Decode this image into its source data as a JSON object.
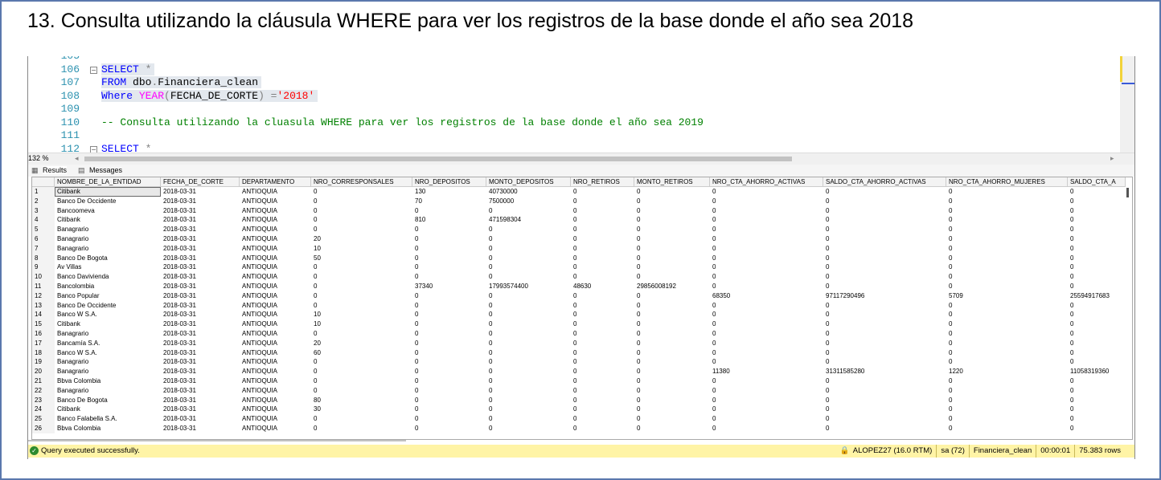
{
  "header": {
    "title": "13. Consulta utilizando la cláusula WHERE para ver los registros de la base donde el año sea 2018"
  },
  "editor": {
    "lines": [
      {
        "number": "105"
      },
      {
        "number": "106",
        "fold": true,
        "selected": true,
        "tokens": [
          {
            "text": "SELECT",
            "kind": "kw"
          },
          {
            "text": " *",
            "kind": "op"
          }
        ]
      },
      {
        "number": "107",
        "selected": true,
        "tokens": [
          {
            "text": "FROM",
            "kind": "kw"
          },
          {
            "text": " dbo",
            "kind": "id"
          },
          {
            "text": ".",
            "kind": "op"
          },
          {
            "text": "Financiera_clean",
            "kind": "id"
          }
        ]
      },
      {
        "number": "108",
        "selected": true,
        "tokens": [
          {
            "text": "Where",
            "kind": "kw"
          },
          {
            "text": " YEAR",
            "kind": "fn"
          },
          {
            "text": "(",
            "kind": "op"
          },
          {
            "text": "FECHA_DE_CORTE",
            "kind": "id"
          },
          {
            "text": ") =",
            "kind": "op"
          },
          {
            "text": "'2018'",
            "kind": "st"
          }
        ]
      },
      {
        "number": "109"
      },
      {
        "number": "110",
        "tokens": [
          {
            "text": "-- Consulta utilizando la cluasula WHERE para ver los registros de la base donde el año sea 2019",
            "kind": "cm"
          }
        ]
      },
      {
        "number": "111"
      },
      {
        "number": "112",
        "fold": true,
        "tokens": [
          {
            "text": "SELECT",
            "kind": "kw"
          },
          {
            "text": " *",
            "kind": "op"
          }
        ]
      }
    ]
  },
  "zoom": "132 %",
  "tabs": [
    "Results",
    "Messages"
  ],
  "table": {
    "columns": [
      "NOMBRE_DE_LA_ENTIDAD",
      "FECHA_DE_CORTE",
      "DEPARTAMENTO",
      "NRO_CORRESPONSALES",
      "NRO_DEPOSITOS",
      "MONTO_DEPOSITOS",
      "NRO_RETIROS",
      "MONTO_RETIROS",
      "NRO_CTA_AHORRO_ACTIVAS",
      "SALDO_CTA_AHORRO_ACTIVAS",
      "NRO_CTA_AHORRO_MUJERES",
      "SALDO_CTA_A"
    ],
    "rows": [
      [
        "1",
        "Citibank",
        "2018-03-31",
        "ANTIOQUIA",
        "0",
        "130",
        "40730000",
        "0",
        "0",
        "0",
        "0",
        "0",
        "0"
      ],
      [
        "2",
        "Banco De Occidente",
        "2018-03-31",
        "ANTIOQUIA",
        "0",
        "70",
        "7500000",
        "0",
        "0",
        "0",
        "0",
        "0",
        "0"
      ],
      [
        "3",
        "Bancoomeva",
        "2018-03-31",
        "ANTIOQUIA",
        "0",
        "0",
        "0",
        "0",
        "0",
        "0",
        "0",
        "0",
        "0"
      ],
      [
        "4",
        "Citibank",
        "2018-03-31",
        "ANTIOQUIA",
        "0",
        "810",
        "471598304",
        "0",
        "0",
        "0",
        "0",
        "0",
        "0"
      ],
      [
        "5",
        "Banagrario",
        "2018-03-31",
        "ANTIOQUIA",
        "0",
        "0",
        "0",
        "0",
        "0",
        "0",
        "0",
        "0",
        "0"
      ],
      [
        "6",
        "Banagrario",
        "2018-03-31",
        "ANTIOQUIA",
        "20",
        "0",
        "0",
        "0",
        "0",
        "0",
        "0",
        "0",
        "0"
      ],
      [
        "7",
        "Banagrario",
        "2018-03-31",
        "ANTIOQUIA",
        "10",
        "0",
        "0",
        "0",
        "0",
        "0",
        "0",
        "0",
        "0"
      ],
      [
        "8",
        "Banco De Bogota",
        "2018-03-31",
        "ANTIOQUIA",
        "50",
        "0",
        "0",
        "0",
        "0",
        "0",
        "0",
        "0",
        "0"
      ],
      [
        "9",
        "Av Villas",
        "2018-03-31",
        "ANTIOQUIA",
        "0",
        "0",
        "0",
        "0",
        "0",
        "0",
        "0",
        "0",
        "0"
      ],
      [
        "10",
        "Banco Davivienda",
        "2018-03-31",
        "ANTIOQUIA",
        "0",
        "0",
        "0",
        "0",
        "0",
        "0",
        "0",
        "0",
        "0"
      ],
      [
        "11",
        "Bancolombia",
        "2018-03-31",
        "ANTIOQUIA",
        "0",
        "37340",
        "17993574400",
        "48630",
        "29856008192",
        "0",
        "0",
        "0",
        "0"
      ],
      [
        "12",
        "Banco Popular",
        "2018-03-31",
        "ANTIOQUIA",
        "0",
        "0",
        "0",
        "0",
        "0",
        "68350",
        "97117290496",
        "5709",
        "25594917683"
      ],
      [
        "13",
        "Banco De Occidente",
        "2018-03-31",
        "ANTIOQUIA",
        "0",
        "0",
        "0",
        "0",
        "0",
        "0",
        "0",
        "0",
        "0"
      ],
      [
        "14",
        "Banco W S.A.",
        "2018-03-31",
        "ANTIOQUIA",
        "10",
        "0",
        "0",
        "0",
        "0",
        "0",
        "0",
        "0",
        "0"
      ],
      [
        "15",
        "Citibank",
        "2018-03-31",
        "ANTIOQUIA",
        "10",
        "0",
        "0",
        "0",
        "0",
        "0",
        "0",
        "0",
        "0"
      ],
      [
        "16",
        "Banagrario",
        "2018-03-31",
        "ANTIOQUIA",
        "0",
        "0",
        "0",
        "0",
        "0",
        "0",
        "0",
        "0",
        "0"
      ],
      [
        "17",
        "Bancamía S.A.",
        "2018-03-31",
        "ANTIOQUIA",
        "20",
        "0",
        "0",
        "0",
        "0",
        "0",
        "0",
        "0",
        "0"
      ],
      [
        "18",
        "Banco W S.A.",
        "2018-03-31",
        "ANTIOQUIA",
        "60",
        "0",
        "0",
        "0",
        "0",
        "0",
        "0",
        "0",
        "0"
      ],
      [
        "19",
        "Banagrario",
        "2018-03-31",
        "ANTIOQUIA",
        "0",
        "0",
        "0",
        "0",
        "0",
        "0",
        "0",
        "0",
        "0"
      ],
      [
        "20",
        "Banagrario",
        "2018-03-31",
        "ANTIOQUIA",
        "0",
        "0",
        "0",
        "0",
        "0",
        "11380",
        "31311585280",
        "1220",
        "11058319360"
      ],
      [
        "21",
        "Bbva Colombia",
        "2018-03-31",
        "ANTIOQUIA",
        "0",
        "0",
        "0",
        "0",
        "0",
        "0",
        "0",
        "0",
        "0"
      ],
      [
        "22",
        "Banagrario",
        "2018-03-31",
        "ANTIOQUIA",
        "0",
        "0",
        "0",
        "0",
        "0",
        "0",
        "0",
        "0",
        "0"
      ],
      [
        "23",
        "Banco De Bogota",
        "2018-03-31",
        "ANTIOQUIA",
        "80",
        "0",
        "0",
        "0",
        "0",
        "0",
        "0",
        "0",
        "0"
      ],
      [
        "24",
        "Citibank",
        "2018-03-31",
        "ANTIOQUIA",
        "30",
        "0",
        "0",
        "0",
        "0",
        "0",
        "0",
        "0",
        "0"
      ],
      [
        "25",
        "Banco Falabella S.A.",
        "2018-03-31",
        "ANTIOQUIA",
        "0",
        "0",
        "0",
        "0",
        "0",
        "0",
        "0",
        "0",
        "0"
      ],
      [
        "26",
        "Bbva Colombia",
        "2018-03-31",
        "ANTIOQUIA",
        "0",
        "0",
        "0",
        "0",
        "0",
        "0",
        "0",
        "0",
        "0"
      ]
    ]
  },
  "status": {
    "message": "Query executed successfully.",
    "items": [
      "ALOPEZ27 (16.0 RTM)",
      "sa (72)",
      "Financiera_clean",
      "00:00:01",
      "75.383 rows"
    ]
  }
}
